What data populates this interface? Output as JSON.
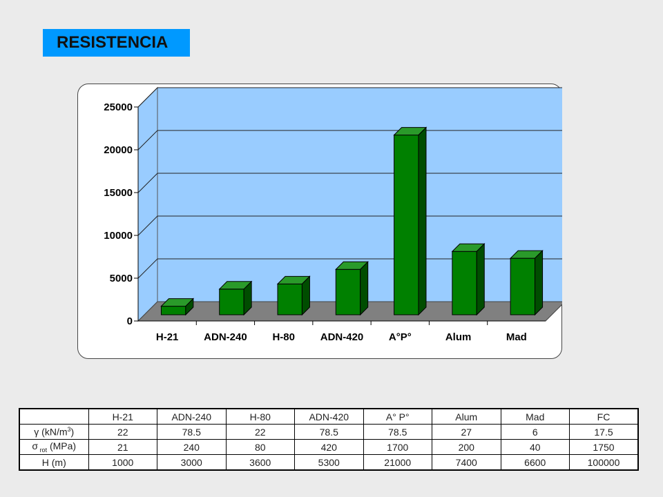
{
  "title": "RESISTENCIA",
  "chart_data": {
    "type": "bar",
    "categories": [
      "H-21",
      "ADN-240",
      "H-80",
      "ADN-420",
      "A°P°",
      "Alum",
      "Mad"
    ],
    "values": [
      1000,
      3000,
      3600,
      5300,
      21000,
      7400,
      6600
    ],
    "ylim": [
      0,
      25000
    ],
    "yticks": [
      0,
      5000,
      10000,
      15000,
      20000,
      25000
    ],
    "grid": true,
    "legend": "none",
    "colors": {
      "bar_front": "#008000",
      "bar_top": "#2a9a2a",
      "bar_side": "#004d00",
      "wall": "#99ccff",
      "floor": "#808080"
    }
  },
  "table": {
    "header": [
      "",
      "H-21",
      "ADN-240",
      "H-80",
      "ADN-420",
      "A° P°",
      "Alum",
      "Mad",
      "FC"
    ],
    "rows": [
      {
        "label": {
          "symbol": "γ",
          "pre": " (kN/m",
          "sup": "3",
          "post": ")"
        },
        "values": [
          "22",
          "78.5",
          "22",
          "78.5",
          "78.5",
          "27",
          "6",
          "17.5"
        ]
      },
      {
        "label": {
          "symbol": "σ",
          "sub": " rot",
          "post": " (MPa)"
        },
        "values": [
          "21",
          "240",
          "80",
          "420",
          "1700",
          "200",
          "40",
          "1750"
        ]
      },
      {
        "label": {
          "text": "H (m)"
        },
        "values": [
          "1000",
          "3000",
          "3600",
          "5300",
          "21000",
          "7400",
          "6600",
          "100000"
        ]
      }
    ]
  }
}
